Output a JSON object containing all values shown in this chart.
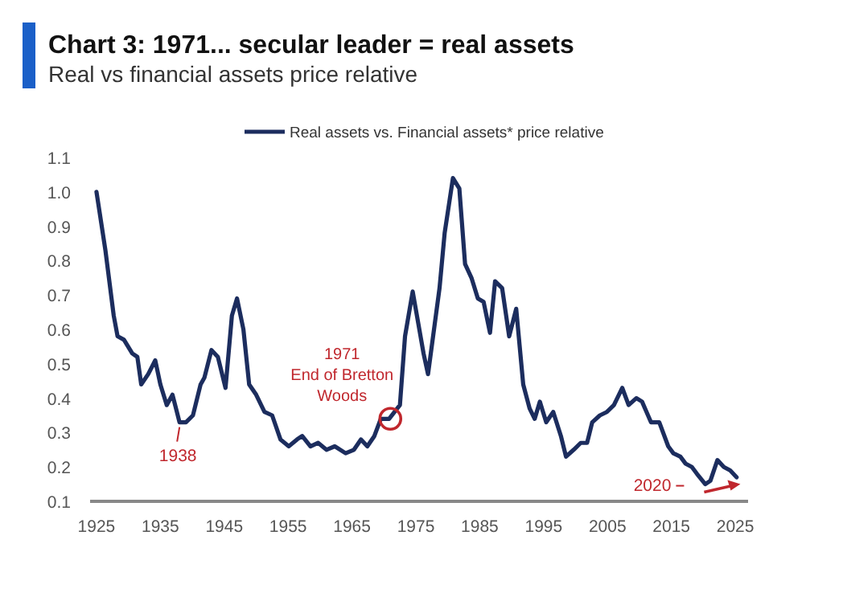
{
  "chart_data": {
    "type": "line",
    "title": "Chart 3: 1971... secular leader = real assets",
    "subtitle": "Real vs financial assets price relative",
    "x": [
      1925,
      1926.4,
      1927.7,
      1928.3,
      1929.3,
      1930.6,
      1931.4,
      1932,
      1933.1,
      1934.2,
      1935,
      1936,
      1936.9,
      1938,
      1939,
      1940.1,
      1941.3,
      1941.9,
      1943,
      1944,
      1945.2,
      1946.2,
      1947,
      1948,
      1948.9,
      1950,
      1951.3,
      1952.5,
      1953.8,
      1955.1,
      1956.4,
      1957.2,
      1958.5,
      1959.7,
      1961,
      1962.3,
      1964,
      1965.3,
      1966.4,
      1967.4,
      1968.5,
      1969.5,
      1970.8,
      1972.5,
      1973.3,
      1974.5,
      1976.2,
      1976.9,
      1978.7,
      1979.5,
      1980.8,
      1981.8,
      1982.7,
      1983.7,
      1984.7,
      1985.6,
      1986.6,
      1987.4,
      1988.5,
      1989.6,
      1990.7,
      1991.8,
      1992.8,
      1993.6,
      1994.4,
      1995.4,
      1996.5,
      1997.7,
      1998.5,
      1999.7,
      2000.8,
      2001.8,
      2002.6,
      2003.8,
      2004.9,
      2006,
      2007.3,
      2008.3,
      2009.5,
      2010.4,
      2011.8,
      2013.1,
      2014.5,
      2015.3,
      2016.4,
      2017.2,
      2018.2,
      2019,
      2020.3,
      2021.1,
      2022.2,
      2023.2,
      2024.2,
      2025.2
    ],
    "series": [
      {
        "name": "Real assets vs. Financial assets* price relative",
        "color": "#1c2d5e",
        "values": [
          1.0,
          0.83,
          0.64,
          0.58,
          0.57,
          0.53,
          0.52,
          0.44,
          0.47,
          0.51,
          0.44,
          0.38,
          0.41,
          0.33,
          0.33,
          0.35,
          0.44,
          0.46,
          0.54,
          0.52,
          0.43,
          0.64,
          0.69,
          0.6,
          0.44,
          0.41,
          0.36,
          0.35,
          0.28,
          0.26,
          0.28,
          0.29,
          0.26,
          0.27,
          0.25,
          0.26,
          0.24,
          0.25,
          0.28,
          0.26,
          0.29,
          0.34,
          0.34,
          0.38,
          0.58,
          0.71,
          0.53,
          0.47,
          0.72,
          0.88,
          1.04,
          1.01,
          0.79,
          0.75,
          0.69,
          0.68,
          0.59,
          0.74,
          0.72,
          0.58,
          0.66,
          0.44,
          0.37,
          0.34,
          0.39,
          0.33,
          0.36,
          0.29,
          0.23,
          0.25,
          0.27,
          0.27,
          0.33,
          0.35,
          0.36,
          0.38,
          0.43,
          0.38,
          0.4,
          0.39,
          0.33,
          0.33,
          0.26,
          0.24,
          0.23,
          0.21,
          0.2,
          0.18,
          0.15,
          0.16,
          0.22,
          0.2,
          0.19,
          0.17
        ]
      }
    ],
    "xlim": [
      1924,
      2027
    ],
    "xticks": [
      1925,
      1935,
      1945,
      1955,
      1965,
      1975,
      1985,
      1995,
      2005,
      2015,
      2025
    ],
    "ylim": [
      0.1,
      1.1
    ],
    "yticks": [
      0.1,
      0.2,
      0.3,
      0.4,
      0.5,
      0.6,
      0.7,
      0.8,
      0.9,
      {
        "value": 1,
        "label": "1.0"
      },
      1.1
    ],
    "grid": false,
    "legend": "top",
    "marker": "none",
    "line_style": "solid",
    "annotations": [
      {
        "text": "1938",
        "x": 1938,
        "y": 0.33
      },
      {
        "text": "1971\nEnd of Bretton\nWoods",
        "x": 1971,
        "y": 0.34
      },
      {
        "text": "2020",
        "x": 2020,
        "y": 0.15
      }
    ]
  }
}
